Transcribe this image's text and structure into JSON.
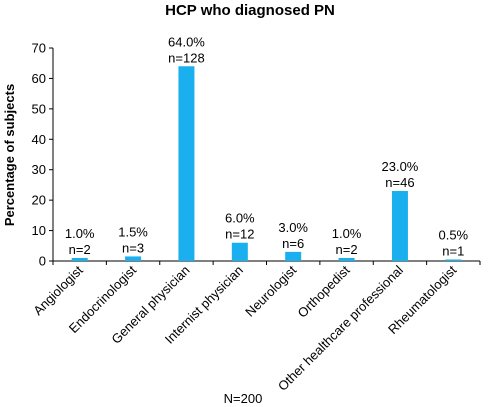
{
  "chart_data": {
    "type": "bar",
    "title": "HCP who diagnosed PN",
    "ylabel": "Percentage of subjects",
    "xlabel": "",
    "ylim": [
      0,
      70
    ],
    "yticks": [
      0,
      10,
      20,
      30,
      40,
      50,
      60,
      70
    ],
    "grid": false,
    "bar_color": "#1AAFEF",
    "categories": [
      "Angiologist",
      "Endocrinologist",
      "General physician",
      "Internist physician",
      "Neurologist",
      "Orthopedist",
      "Other healthcare professional",
      "Rheumatologist"
    ],
    "values": [
      1.0,
      1.5,
      64.0,
      6.0,
      3.0,
      1.0,
      23.0,
      0.5
    ],
    "data_labels": [
      {
        "percent": "1.0%",
        "n": "n=2"
      },
      {
        "percent": "1.5%",
        "n": "n=3"
      },
      {
        "percent": "64.0%",
        "n": "n=128"
      },
      {
        "percent": "6.0%",
        "n": "n=12"
      },
      {
        "percent": "3.0%",
        "n": "n=6"
      },
      {
        "percent": "1.0%",
        "n": "n=2"
      },
      {
        "percent": "23.0%",
        "n": "n=46"
      },
      {
        "percent": "0.5%",
        "n": "n=1"
      }
    ],
    "annotation": "N=200"
  }
}
